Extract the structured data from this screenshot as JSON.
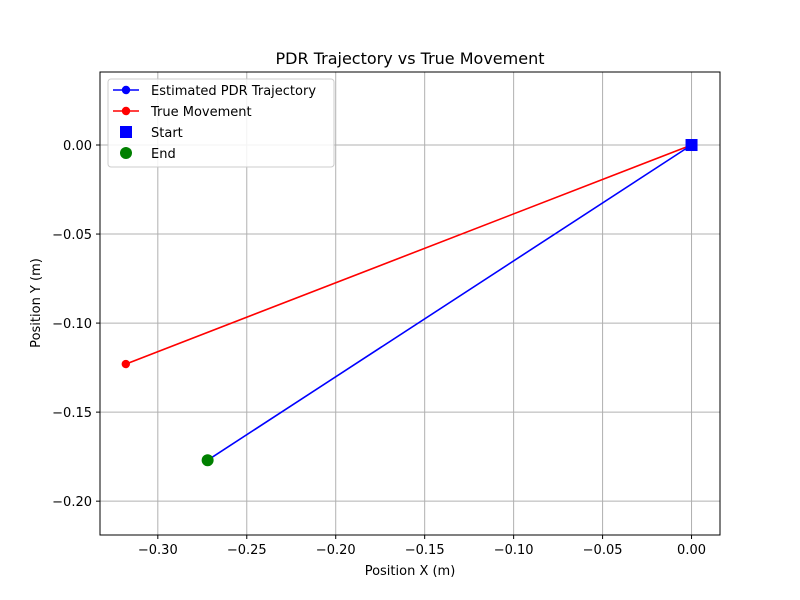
{
  "chart_data": {
    "type": "line",
    "title": "PDR Trajectory vs True Movement",
    "xlabel": "Position X (m)",
    "ylabel": "Position Y (m)",
    "xlim": [
      -0.3325,
      0.016
    ],
    "ylim": [
      -0.219,
      0.041
    ],
    "x_ticks": [
      -0.3,
      -0.25,
      -0.2,
      -0.15,
      -0.1,
      -0.05,
      0.0
    ],
    "x_tick_labels": [
      "−0.30",
      "−0.25",
      "−0.20",
      "−0.15",
      "−0.10",
      "−0.05",
      "0.00"
    ],
    "y_ticks": [
      0.0,
      -0.05,
      -0.1,
      -0.15,
      -0.2
    ],
    "y_tick_labels": [
      "0.00",
      "−0.05",
      "−0.10",
      "−0.15",
      "−0.20"
    ],
    "grid": true,
    "legend_position": "upper-left",
    "series": [
      {
        "name": "Estimated PDR Trajectory",
        "color": "#0000ff",
        "marker": "circle",
        "x": [
          0.0,
          -0.272
        ],
        "y": [
          0.0,
          -0.177
        ]
      },
      {
        "name": "True Movement",
        "color": "#ff0000",
        "marker": "circle",
        "x": [
          0.0,
          -0.318
        ],
        "y": [
          0.0,
          -0.123
        ]
      }
    ],
    "points": [
      {
        "name": "Start",
        "color": "#0000ff",
        "marker": "square",
        "x": 0.0,
        "y": 0.0
      },
      {
        "name": "End",
        "color": "#008000",
        "marker": "circle",
        "x": -0.272,
        "y": -0.177
      }
    ]
  }
}
